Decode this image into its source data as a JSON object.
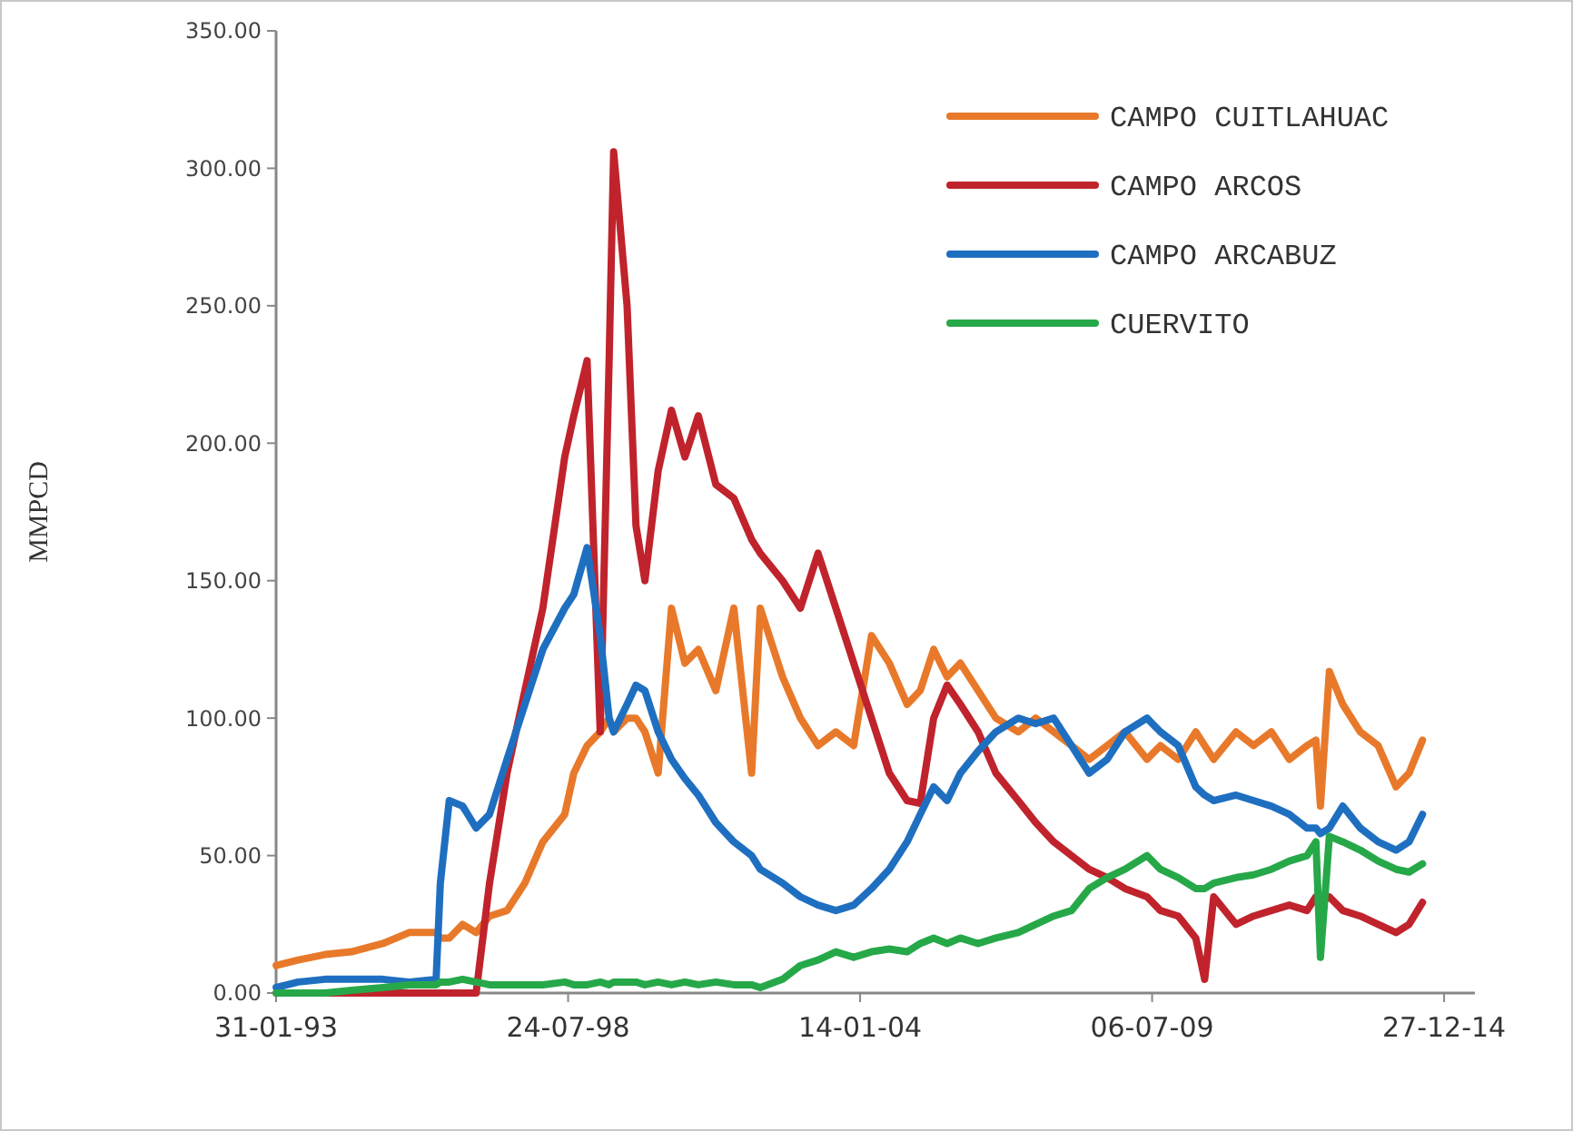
{
  "chart_data": {
    "type": "line",
    "ylabel": "MMPCD",
    "x": [
      "1993-02",
      "1993-07",
      "1994-01",
      "1994-07",
      "1995-02",
      "1995-08",
      "1996-02",
      "1996-03",
      "1996-05",
      "1996-08",
      "1996-11",
      "1997-02",
      "1997-06",
      "1997-10",
      "1998-02",
      "1998-07",
      "1998-09",
      "1998-12",
      "1999-03",
      "1999-05",
      "1999-06",
      "1999-09",
      "1999-11",
      "2000-01",
      "2000-04",
      "2000-07",
      "2000-10",
      "2001-01",
      "2001-05",
      "2001-09",
      "2002-01",
      "2002-03",
      "2002-08",
      "2002-12",
      "2003-04",
      "2003-08",
      "2003-12",
      "2004-04",
      "2004-08",
      "2004-12",
      "2005-03",
      "2005-06",
      "2005-09",
      "2005-12",
      "2006-04",
      "2006-08",
      "2007-01",
      "2007-05",
      "2007-09",
      "2008-01",
      "2008-05",
      "2008-09",
      "2009-01",
      "2009-06",
      "2009-09",
      "2010-01",
      "2010-05",
      "2010-07",
      "2010-09",
      "2011-02",
      "2011-06",
      "2011-10",
      "2012-02",
      "2012-06",
      "2012-08",
      "2012-09",
      "2012-11",
      "2013-02",
      "2013-06",
      "2013-10",
      "2014-02",
      "2014-05",
      "2014-08"
    ],
    "series": [
      {
        "name": "CAMPO CUITLAHUAC",
        "color": "#e8792a",
        "values": [
          10,
          12,
          14,
          15,
          18,
          22,
          22,
          20,
          20,
          25,
          22,
          28,
          30,
          40,
          55,
          65,
          80,
          90,
          95,
          100,
          95,
          100,
          100,
          95,
          80,
          140,
          120,
          125,
          110,
          140,
          80,
          140,
          115,
          100,
          90,
          95,
          90,
          130,
          120,
          105,
          110,
          125,
          115,
          120,
          110,
          100,
          95,
          100,
          95,
          90,
          85,
          90,
          95,
          85,
          90,
          85,
          95,
          90,
          85,
          95,
          90,
          95,
          85,
          90,
          92,
          68,
          117,
          105,
          95,
          90,
          75,
          80,
          92
        ]
      },
      {
        "name": "CAMPO ARCOS",
        "color": "#c0232c",
        "values": [
          0,
          0,
          0,
          0,
          0,
          0,
          0,
          0,
          0,
          0,
          0,
          40,
          80,
          110,
          140,
          195,
          210,
          230,
          95,
          230,
          306,
          250,
          170,
          150,
          190,
          212,
          195,
          210,
          185,
          180,
          165,
          160,
          150,
          140,
          160,
          140,
          120,
          100,
          80,
          70,
          69,
          100,
          112,
          105,
          95,
          80,
          70,
          62,
          55,
          50,
          45,
          42,
          38,
          35,
          30,
          28,
          20,
          5,
          35,
          25,
          28,
          30,
          32,
          30,
          35,
          33,
          35,
          30,
          28,
          25,
          22,
          25,
          33
        ]
      },
      {
        "name": "CAMPO ARCABUZ",
        "color": "#1f6fc0",
        "values": [
          2,
          4,
          5,
          5,
          5,
          4,
          5,
          40,
          70,
          68,
          60,
          65,
          85,
          105,
          125,
          140,
          145,
          162,
          130,
          100,
          95,
          105,
          112,
          110,
          95,
          85,
          78,
          72,
          62,
          55,
          50,
          45,
          40,
          35,
          32,
          30,
          32,
          38,
          45,
          55,
          65,
          75,
          70,
          80,
          88,
          95,
          100,
          98,
          100,
          90,
          80,
          85,
          95,
          100,
          95,
          90,
          75,
          72,
          70,
          72,
          70,
          68,
          65,
          60,
          60,
          58,
          60,
          68,
          60,
          55,
          52,
          55,
          65
        ]
      },
      {
        "name": "CUERVITO",
        "color": "#26a849",
        "values": [
          0,
          0,
          0,
          1,
          2,
          3,
          3,
          4,
          4,
          5,
          4,
          3,
          3,
          3,
          3,
          4,
          3,
          3,
          4,
          3,
          4,
          4,
          4,
          3,
          4,
          3,
          4,
          3,
          4,
          3,
          3,
          2,
          5,
          10,
          12,
          15,
          13,
          15,
          16,
          15,
          18,
          20,
          18,
          20,
          18,
          20,
          22,
          25,
          28,
          30,
          38,
          42,
          45,
          50,
          45,
          42,
          38,
          38,
          40,
          42,
          43,
          45,
          48,
          50,
          55,
          13,
          57,
          55,
          52,
          48,
          45,
          44,
          47
        ]
      }
    ],
    "xlim": [
      "1993-01-31",
      "2015-07-26"
    ],
    "xticks": [
      {
        "value": "1993-01-31",
        "label": "31-01-93"
      },
      {
        "value": "1998-07-24",
        "label": "24-07-98"
      },
      {
        "value": "2004-01-14",
        "label": "14-01-04"
      },
      {
        "value": "2009-07-06",
        "label": "06-07-09"
      },
      {
        "value": "2014-12-27",
        "label": "27-12-14"
      }
    ],
    "ylim": [
      0,
      350
    ],
    "yticks": [
      {
        "value": 0,
        "label": "0.00"
      },
      {
        "value": 50,
        "label": "50.00"
      },
      {
        "value": 100,
        "label": "100.00"
      },
      {
        "value": 150,
        "label": "150.00"
      },
      {
        "value": 200,
        "label": "200.00"
      },
      {
        "value": 250,
        "label": "250.00"
      },
      {
        "value": 300,
        "label": "300.00"
      },
      {
        "value": 350,
        "label": "350.00"
      }
    ],
    "grid": false,
    "legend": "top right",
    "marker": "none",
    "line_style": "solid"
  }
}
